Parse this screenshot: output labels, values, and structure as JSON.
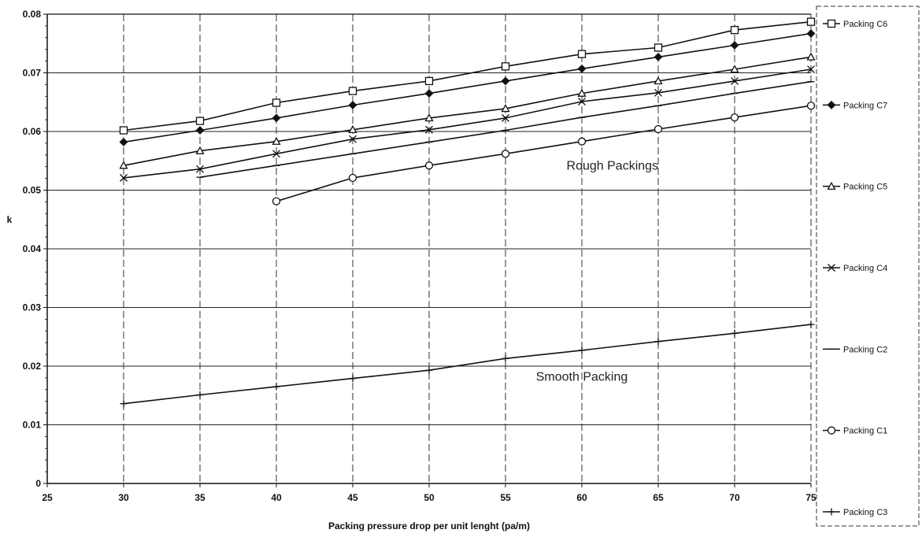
{
  "chart_data": {
    "type": "line",
    "title": "",
    "xlabel": "Packing pressure drop per unit lenght (pa/m)",
    "ylabel": "k",
    "xlim": [
      25,
      75
    ],
    "ylim": [
      0,
      0.08
    ],
    "x_ticks": [
      25,
      30,
      35,
      40,
      45,
      50,
      55,
      60,
      65,
      70,
      75
    ],
    "y_ticks": [
      0,
      0.01,
      0.02,
      0.03,
      0.04,
      0.05,
      0.06,
      0.07,
      0.08
    ],
    "x_tick_labels": [
      "25",
      "30",
      "35",
      "40",
      "45",
      "50",
      "55",
      "60",
      "65",
      "70",
      "75"
    ],
    "y_tick_labels": [
      "0",
      "0.01",
      "0.02",
      "0.03",
      "0.04",
      "0.05",
      "0.06",
      "0.07",
      "0.08"
    ],
    "grid": true,
    "legend_position": "right",
    "annotations": [
      {
        "text": "Rough Packings",
        "x": 62,
        "y": 0.0535
      },
      {
        "text": "Smooth Packing",
        "x": 60,
        "y": 0.0175
      }
    ],
    "series": [
      {
        "name": "Packing C6",
        "marker": "square",
        "x": [
          30,
          35,
          40,
          45,
          50,
          55,
          60,
          65,
          70,
          75
        ],
        "y": [
          0.0602,
          0.0618,
          0.0649,
          0.0669,
          0.0686,
          0.0711,
          0.0732,
          0.0743,
          0.0773,
          0.0787
        ]
      },
      {
        "name": "Packing C7",
        "marker": "diamond",
        "x": [
          30,
          35,
          40,
          45,
          50,
          55,
          60,
          65,
          70,
          75
        ],
        "y": [
          0.0582,
          0.0602,
          0.0623,
          0.0645,
          0.0665,
          0.0686,
          0.0707,
          0.0727,
          0.0747,
          0.0767
        ]
      },
      {
        "name": "Packing C5",
        "marker": "triangle",
        "x": [
          30,
          35,
          40,
          45,
          50,
          55,
          60,
          65,
          70,
          75
        ],
        "y": [
          0.0542,
          0.0567,
          0.0583,
          0.0603,
          0.0623,
          0.0639,
          0.0665,
          0.0686,
          0.0706,
          0.0727
        ]
      },
      {
        "name": "Packing C4",
        "marker": "x",
        "x": [
          30,
          35,
          40,
          45,
          50,
          55,
          60,
          65,
          70,
          75
        ],
        "y": [
          0.0521,
          0.0536,
          0.0562,
          0.0587,
          0.0603,
          0.0623,
          0.0651,
          0.0666,
          0.0686,
          0.0706
        ]
      },
      {
        "name": "Packing C2",
        "marker": "dash",
        "x": [
          35,
          40,
          45,
          50,
          55,
          60,
          65,
          70,
          75
        ],
        "y": [
          0.0522,
          0.0542,
          0.0562,
          0.0582,
          0.0602,
          0.0624,
          0.0644,
          0.0665,
          0.0685
        ]
      },
      {
        "name": "Packing C1",
        "marker": "circle",
        "x": [
          40,
          45,
          50,
          55,
          60,
          65,
          70,
          75
        ],
        "y": [
          0.0481,
          0.0521,
          0.0542,
          0.0562,
          0.0583,
          0.0604,
          0.0624,
          0.0644
        ]
      },
      {
        "name": "Packing C3",
        "marker": "plus",
        "x": [
          30,
          35,
          40,
          45,
          50,
          55,
          60,
          65,
          70,
          75
        ],
        "y": [
          0.0136,
          0.0151,
          0.0165,
          0.0179,
          0.0193,
          0.0213,
          0.0227,
          0.0242,
          0.0256,
          0.0271
        ]
      }
    ]
  }
}
